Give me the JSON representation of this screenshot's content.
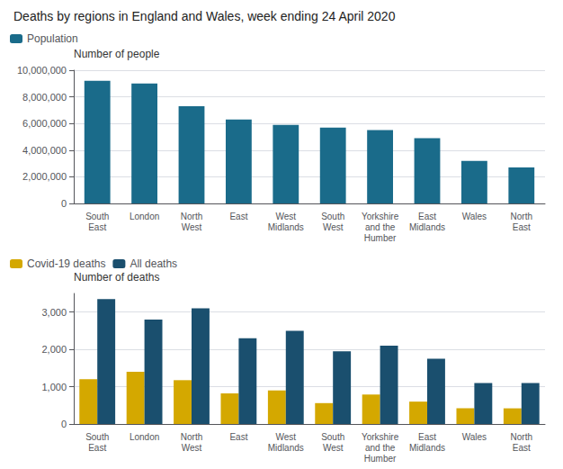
{
  "chart_data": [
    {
      "type": "bar",
      "title": "Deaths by regions in England and Wales, week ending 24 April 2020",
      "ylabel": "Number of people",
      "categories": [
        "South\nEast",
        "London",
        "North\nWest",
        "East",
        "West\nMidlands",
        "South\nWest",
        "Yorkshire\nand the\nHumber",
        "East\nMidlands",
        "Wales",
        "North\nEast"
      ],
      "series": [
        {
          "name": "Population",
          "color": "#1a6b8a",
          "values": [
            9200000,
            9000000,
            7300000,
            6300000,
            5900000,
            5700000,
            5500000,
            4900000,
            3200000,
            2700000
          ]
        }
      ],
      "ylim": [
        0,
        10000000
      ],
      "yticks": [
        0,
        {
          "value": 2000000,
          "label": "2,000,000"
        },
        {
          "value": 4000000,
          "label": "4,000,000"
        },
        {
          "value": 6000000,
          "label": "6,000,000"
        },
        {
          "value": 8000000,
          "label": "8,000,000"
        },
        {
          "value": 10000000,
          "label": "10,000,000"
        }
      ],
      "grid": true,
      "legend": "upper left"
    },
    {
      "type": "bar",
      "ylabel": "Number of deaths",
      "categories": [
        "South\nEast",
        "London",
        "North\nWest",
        "East",
        "West\nMidlands",
        "South\nWest",
        "Yorkshire\nand the\nHumber",
        "East\nMidlands",
        "Wales",
        "North\nEast"
      ],
      "series": [
        {
          "name": "Covid-19 deaths",
          "color": "#d4a800",
          "values": [
            1200,
            1400,
            1175,
            820,
            900,
            560,
            790,
            600,
            420,
            420
          ]
        },
        {
          "name": "All deaths",
          "color": "#1a4f6e",
          "values": [
            3350,
            2800,
            3100,
            2300,
            2500,
            1950,
            2100,
            1750,
            1100,
            1100
          ]
        }
      ],
      "ylim": [
        0,
        3500
      ],
      "yticks": [
        0,
        {
          "value": 1000,
          "label": "1,000"
        },
        {
          "value": 2000,
          "label": "2,000"
        },
        {
          "value": 3000,
          "label": "3,000"
        }
      ],
      "grid": true,
      "legend": "upper left"
    }
  ]
}
